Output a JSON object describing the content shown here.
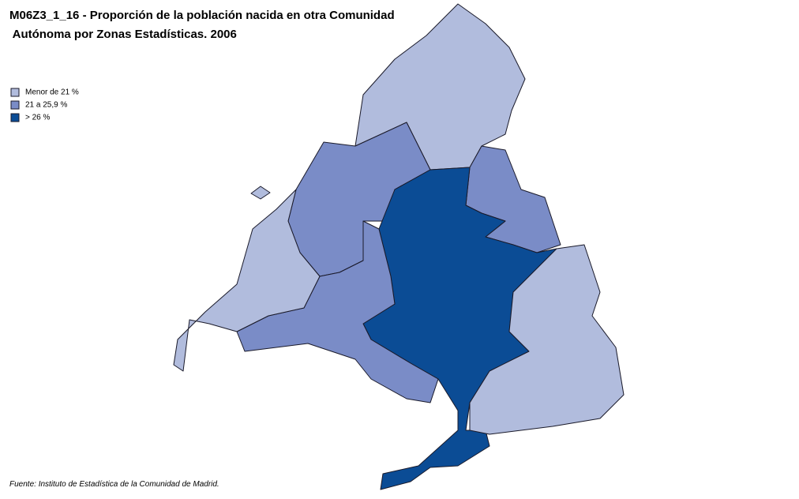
{
  "header": {
    "title": [
      "M06Z3_1_16 - Proporción de la población nacida en otra Comunidad",
      " Autónoma por Zonas Estadísticas. 2006"
    ]
  },
  "legend": [
    {
      "label": "Menor de 21 %",
      "color": "#b1bcdd"
    },
    {
      "label": "21 a 25,9 %",
      "color": "#7a8cc7"
    },
    {
      "label": "> 26 %",
      "color": "#0b4c95"
    }
  ],
  "source": "Fuente: Instituto de Estadística de la Comunidad de Madrid."
}
